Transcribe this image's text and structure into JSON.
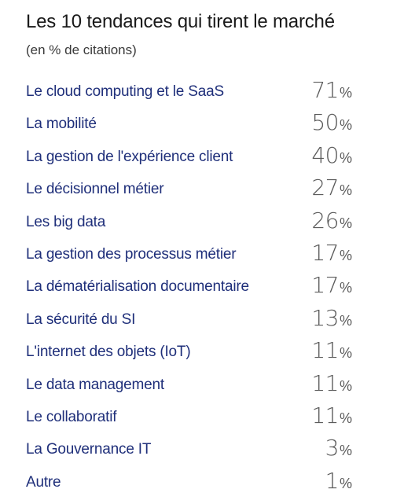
{
  "chart_data": {
    "type": "table",
    "title": "Les 10 tendances qui tirent le marché",
    "subtitle": "(en % de citations)",
    "unit": "%",
    "categories": [
      "Le cloud computing et le SaaS",
      "La mobilité",
      "La gestion de l'expérience client",
      "Le décisionnel métier",
      "Les big data",
      "La gestion des processus métier",
      "La dématérialisation documentaire",
      "La sécurité du SI",
      "L'internet des objets (IoT)",
      "Le data management",
      "Le collaboratif",
      "La Gouvernance IT",
      "Autre"
    ],
    "values": [
      71,
      50,
      40,
      27,
      26,
      17,
      17,
      13,
      11,
      11,
      11,
      3,
      1
    ]
  }
}
